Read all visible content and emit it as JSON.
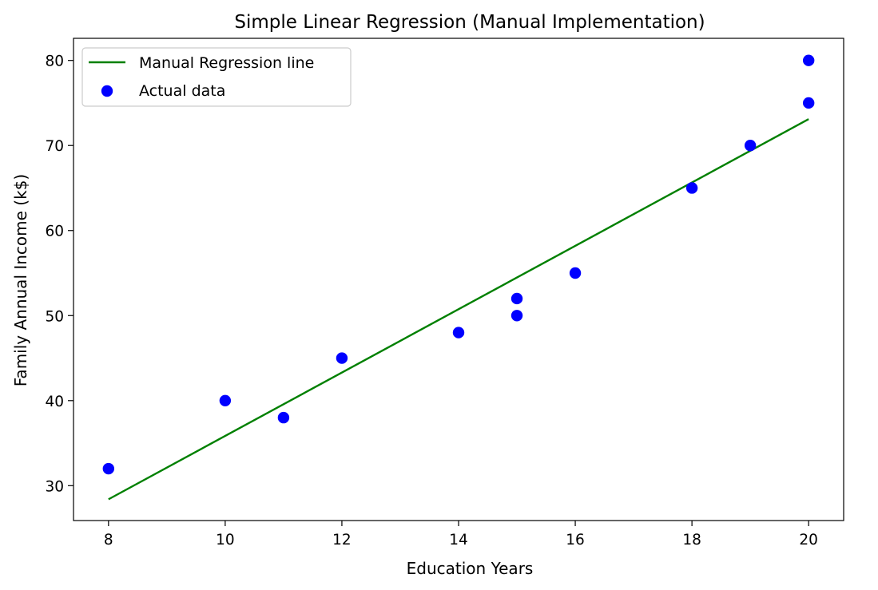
{
  "chart_data": {
    "type": "scatter",
    "title": "Simple Linear Regression (Manual Implementation)",
    "xlabel": "Education Years",
    "ylabel": "Family Annual Income (k$)",
    "xlim": [
      7.4,
      20.6
    ],
    "ylim": [
      25.9,
      82.6
    ],
    "xticks": [
      8,
      10,
      12,
      14,
      16,
      18,
      20
    ],
    "yticks": [
      30,
      40,
      50,
      60,
      70,
      80
    ],
    "grid": false,
    "legend_position": "top-left",
    "series": [
      {
        "name": "Manual Regression line",
        "kind": "line",
        "color": "#008000",
        "x": [
          8,
          20
        ],
        "y": [
          28.4,
          73.1
        ]
      },
      {
        "name": "Actual data",
        "kind": "scatter",
        "color": "#0000ff",
        "points": [
          {
            "x": 8,
            "y": 32
          },
          {
            "x": 10,
            "y": 40
          },
          {
            "x": 11,
            "y": 38
          },
          {
            "x": 12,
            "y": 45
          },
          {
            "x": 14,
            "y": 48
          },
          {
            "x": 15,
            "y": 52
          },
          {
            "x": 15,
            "y": 50
          },
          {
            "x": 16,
            "y": 55
          },
          {
            "x": 18,
            "y": 65
          },
          {
            "x": 19,
            "y": 70
          },
          {
            "x": 20,
            "y": 80
          },
          {
            "x": 20,
            "y": 75
          }
        ]
      }
    ]
  }
}
